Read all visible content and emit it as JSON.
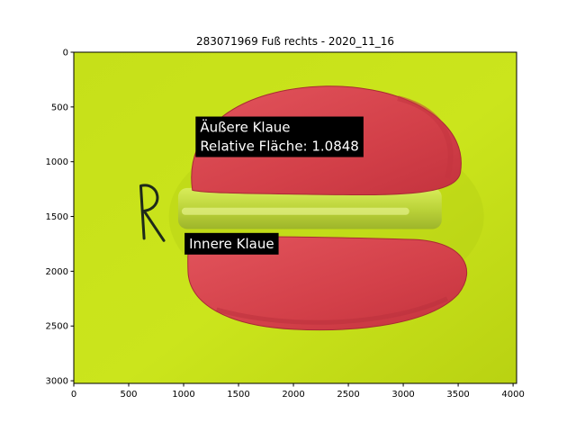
{
  "chart_data": {
    "type": "image",
    "title": "283071969 Fuß rechts - 2020_11_16",
    "xlim": [
      0,
      4032
    ],
    "ylim": [
      3024,
      0
    ],
    "y_inverted": true,
    "xticks": [
      0,
      500,
      1000,
      1500,
      2000,
      2500,
      3000,
      3500,
      4000
    ],
    "yticks": [
      0,
      500,
      1000,
      1500,
      2000,
      2500,
      3000
    ],
    "xtick_labels": [
      "0",
      "500",
      "1000",
      "1500",
      "2000",
      "2500",
      "3000",
      "3500",
      "4000"
    ],
    "ytick_labels": [
      "0",
      "500",
      "1000",
      "1500",
      "2000",
      "2500",
      "3000"
    ],
    "annotations": [
      {
        "lines": [
          "Äußere Klaue",
          "Relative Fläche: 1.0848"
        ],
        "x": 1150,
        "y": 900,
        "text_color": "#ffffff",
        "box_color": "#000000"
      },
      {
        "lines": [
          "Innere Klaue"
        ],
        "x": 1050,
        "y": 1790,
        "text_color": "#ffffff",
        "box_color": "#000000"
      }
    ],
    "image_content": {
      "background_color": "#c9e31a",
      "claw_color": "#d6404a",
      "pad_color": "#c8dc4a",
      "upper_claw": {
        "x": [
          1050,
          3560
        ],
        "y": [
          310,
          1300
        ]
      },
      "lower_claw": {
        "x": [
          1030,
          3620
        ],
        "y": [
          1680,
          2540
        ]
      },
      "center_pad": {
        "x": [
          950,
          3350
        ],
        "y": [
          1190,
          1680
        ]
      }
    }
  }
}
